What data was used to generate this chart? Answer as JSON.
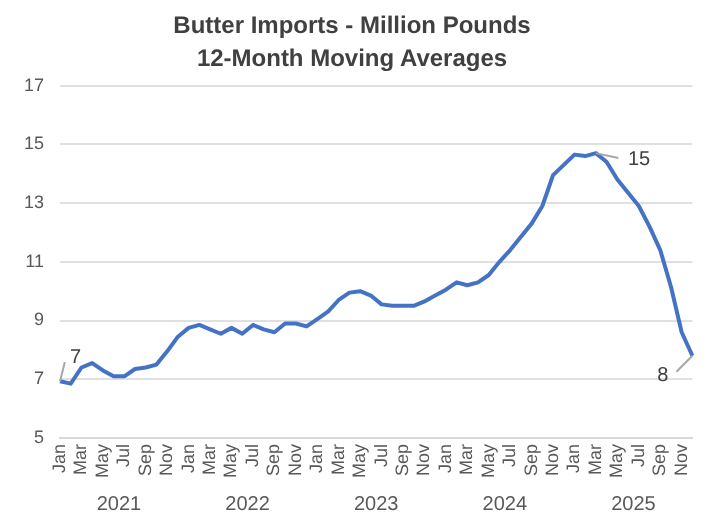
{
  "chart_data": {
    "type": "line",
    "title": "Butter Imports - Million Pounds",
    "subtitle": "12-Month Moving Averages",
    "categories": [
      "Jan",
      null,
      "Mar",
      null,
      "May",
      null,
      "Jul",
      null,
      "Sep",
      null,
      "Nov",
      null,
      "Jan",
      null,
      "Mar",
      null,
      "May",
      null,
      "Jul",
      null,
      "Sep",
      null,
      "Nov",
      null,
      "Jan",
      null,
      "Mar",
      null,
      "May",
      null,
      "Jul",
      null,
      "Sep",
      null,
      "Nov",
      null,
      "Jan",
      null,
      "Mar",
      null,
      "May",
      null,
      "Jul",
      null,
      "Sep",
      null,
      "Nov",
      null,
      "Jan",
      null,
      "Mar",
      null,
      "May",
      null,
      "Jul",
      null,
      "Sep",
      null,
      "Nov",
      null
    ],
    "annotations": [
      "2021",
      "2022",
      "2023",
      "2024",
      "2025"
    ],
    "series": [
      {
        "color": "#4472c4",
        "values": [
          6.93,
          6.85,
          7.4,
          7.55,
          7.3,
          7.1,
          7.1,
          7.35,
          7.4,
          7.5,
          7.95,
          8.45,
          8.75,
          8.85,
          8.7,
          8.55,
          8.75,
          8.55,
          8.85,
          8.7,
          8.6,
          8.9,
          8.9,
          8.8,
          9.05,
          9.3,
          9.7,
          9.95,
          10.0,
          9.85,
          9.55,
          9.5,
          9.5,
          9.5,
          9.65,
          9.85,
          10.05,
          10.3,
          10.2,
          10.3,
          10.55,
          11.0,
          11.4,
          11.85,
          12.3,
          12.9,
          13.95,
          14.3,
          14.65,
          14.6,
          14.7,
          14.4,
          13.8,
          13.35,
          12.9,
          12.2,
          11.4,
          10.15,
          8.6,
          7.8
        ],
        "value_labels": [
          "7",
          null,
          null,
          null,
          null,
          null,
          null,
          null,
          null,
          null,
          null,
          null,
          null,
          null,
          null,
          null,
          null,
          null,
          null,
          null,
          null,
          null,
          null,
          null,
          null,
          null,
          null,
          null,
          null,
          null,
          null,
          null,
          null,
          null,
          null,
          null,
          null,
          null,
          null,
          null,
          null,
          null,
          null,
          null,
          null,
          null,
          null,
          null,
          null,
          null,
          "15",
          null,
          null,
          null,
          null,
          null,
          null,
          null,
          null,
          "8"
        ]
      }
    ],
    "ylim": [
      5,
      17
    ],
    "yticks": [
      5,
      7,
      9,
      11,
      13,
      15,
      17
    ],
    "grid": "y",
    "legend": false,
    "marker": "none",
    "line_style": "solid"
  }
}
